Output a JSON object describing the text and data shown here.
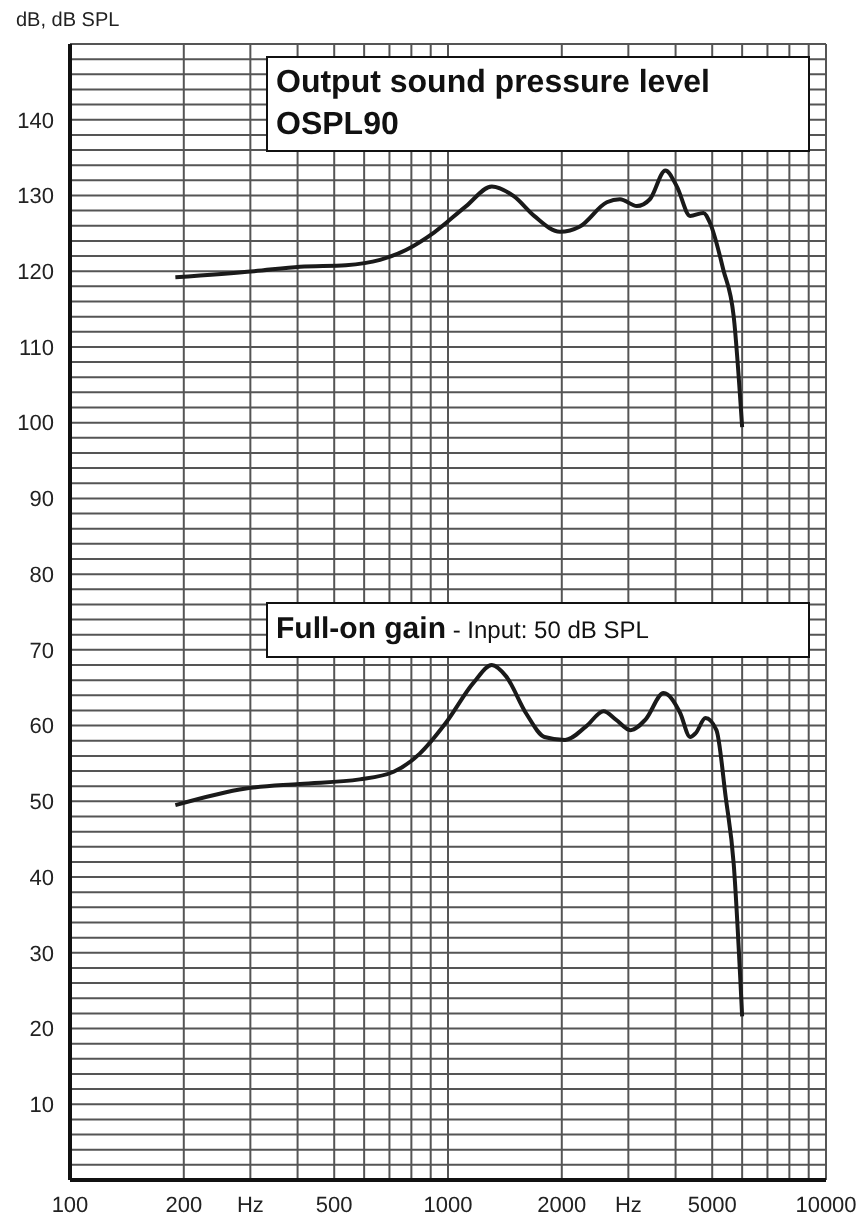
{
  "chart_data": {
    "type": "line",
    "ylabel": "dB, dB SPL",
    "log": "x",
    "grid": true,
    "marker": "none",
    "annotations": [
      "Output sound pressure level OSPL90",
      "Full-on gain",
      "- Input: 50 dB SPL"
    ],
    "xlim": [
      100,
      10000
    ],
    "xticks": [
      100,
      200,
      {
        "value": 300,
        "label": "Hz"
      },
      {
        "value": 400,
        "label": null
      },
      500,
      {
        "value": 600,
        "label": null
      },
      {
        "value": 700,
        "label": null
      },
      {
        "value": 800,
        "label": null
      },
      {
        "value": 900,
        "label": null
      },
      1000,
      2000,
      {
        "value": 3000,
        "label": "Hz"
      },
      {
        "value": 4000,
        "label": null
      },
      5000,
      {
        "value": 6000,
        "label": null
      },
      {
        "value": 7000,
        "label": null
      },
      {
        "value": 8000,
        "label": null
      },
      {
        "value": 9000,
        "label": null
      },
      10000
    ],
    "ylim": [
      0,
      150
    ],
    "yticks": [
      {
        "value": 0,
        "label": null
      },
      {
        "value": 2,
        "label": null
      },
      {
        "value": 4,
        "label": null
      },
      {
        "value": 6,
        "label": null
      },
      {
        "value": 8,
        "label": null
      },
      10,
      {
        "value": 12,
        "label": null
      },
      {
        "value": 14,
        "label": null
      },
      {
        "value": 16,
        "label": null
      },
      {
        "value": 18,
        "label": null
      },
      20,
      {
        "value": 22,
        "label": null
      },
      {
        "value": 24,
        "label": null
      },
      {
        "value": 26,
        "label": null
      },
      {
        "value": 28,
        "label": null
      },
      30,
      {
        "value": 32,
        "label": null
      },
      {
        "value": 34,
        "label": null
      },
      {
        "value": 36,
        "label": null
      },
      {
        "value": 38,
        "label": null
      },
      40,
      {
        "value": 42,
        "label": null
      },
      {
        "value": 44,
        "label": null
      },
      {
        "value": 46,
        "label": null
      },
      {
        "value": 48,
        "label": null
      },
      50,
      {
        "value": 52,
        "label": null
      },
      {
        "value": 54,
        "label": null
      },
      {
        "value": 56,
        "label": null
      },
      {
        "value": 58,
        "label": null
      },
      60,
      {
        "value": 62,
        "label": null
      },
      {
        "value": 64,
        "label": null
      },
      {
        "value": 66,
        "label": null
      },
      {
        "value": 68,
        "label": null
      },
      70,
      {
        "value": 72,
        "label": null
      },
      {
        "value": 74,
        "label": null
      },
      {
        "value": 76,
        "label": null
      },
      {
        "value": 78,
        "label": null
      },
      80,
      {
        "value": 82,
        "label": null
      },
      {
        "value": 84,
        "label": null
      },
      {
        "value": 86,
        "label": null
      },
      {
        "value": 88,
        "label": null
      },
      90,
      {
        "value": 92,
        "label": null
      },
      {
        "value": 94,
        "label": null
      },
      {
        "value": 96,
        "label": null
      },
      {
        "value": 98,
        "label": null
      },
      100,
      {
        "value": 102,
        "label": null
      },
      {
        "value": 104,
        "label": null
      },
      {
        "value": 106,
        "label": null
      },
      {
        "value": 108,
        "label": null
      },
      110,
      {
        "value": 112,
        "label": null
      },
      {
        "value": 114,
        "label": null
      },
      {
        "value": 116,
        "label": null
      },
      {
        "value": 118,
        "label": null
      },
      120,
      {
        "value": 122,
        "label": null
      },
      {
        "value": 124,
        "label": null
      },
      {
        "value": 126,
        "label": null
      },
      {
        "value": 128,
        "label": null
      },
      130,
      {
        "value": 132,
        "label": null
      },
      {
        "value": 134,
        "label": null
      },
      {
        "value": 136,
        "label": null
      },
      {
        "value": 138,
        "label": null
      },
      140,
      {
        "value": 142,
        "label": null
      },
      {
        "value": 144,
        "label": null
      },
      {
        "value": 146,
        "label": null
      },
      {
        "value": 148,
        "label": null
      },
      {
        "value": 150,
        "label": null
      }
    ],
    "series": [
      {
        "color": "#1a1a1a",
        "x": [
          190,
          307,
          406,
          537,
          661,
          774,
          918,
          1117,
          1306,
          1493,
          1690,
          1977,
          2234,
          2631,
          2850,
          3160,
          3420,
          3760,
          4030,
          4370,
          4740,
          4930,
          5350,
          5700,
          6000
        ],
        "values": [
          119.2,
          120,
          120.6,
          120.8,
          121.5,
          122.8,
          125.1,
          128.6,
          131.2,
          129.9,
          127.3,
          125.2,
          125.9,
          129.1,
          129.5,
          128.6,
          129.5,
          133.3,
          131.2,
          127.3,
          127.7,
          126.4,
          120.2,
          114,
          99.4
        ]
      },
      {
        "color": "#1a1a1a",
        "x": [
          190,
          292,
          406,
          584,
          718,
          842,
          985,
          1170,
          1306,
          1425,
          1610,
          1800,
          2040,
          2320,
          2580,
          2780,
          3040,
          3330,
          3720,
          4110,
          4370,
          4520,
          4800,
          5130,
          5430,
          5700,
          6000
        ],
        "values": [
          49.5,
          51.7,
          52.3,
          52.9,
          53.9,
          56.3,
          60.3,
          65.7,
          68,
          66.5,
          61.6,
          58.5,
          58.1,
          59.9,
          61.9,
          60.8,
          59.4,
          60.8,
          64.3,
          61.7,
          58.5,
          59,
          61,
          59.4,
          50.5,
          41.7,
          21.6
        ]
      }
    ]
  }
}
